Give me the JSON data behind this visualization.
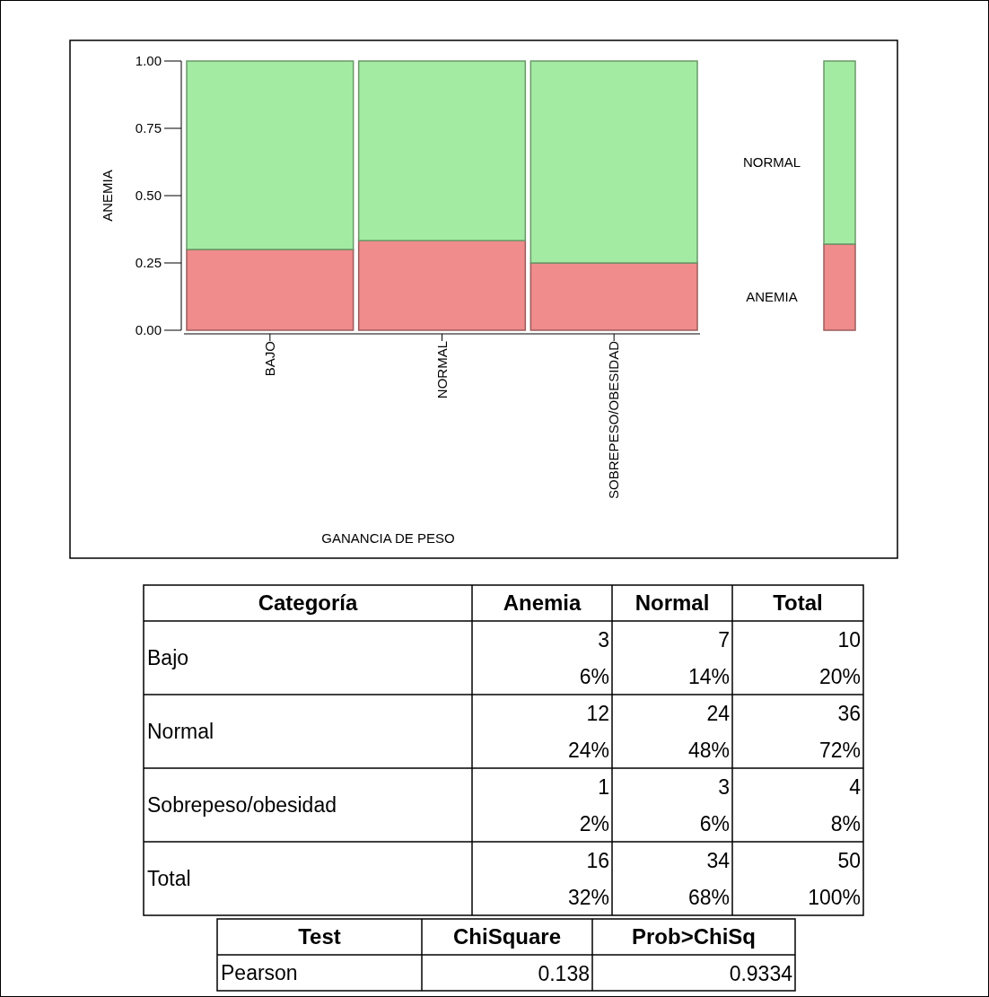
{
  "chart_data": [
    {
      "type": "bar",
      "stacked": true,
      "xlabel": "GANANCIA DE PESO",
      "ylabel": "ANEMIA",
      "categories": [
        "BAJO",
        "NORMAL",
        "SOBREPESO/OBESIDAD"
      ],
      "ylim": [
        0,
        1
      ],
      "yticks": [
        {
          "value": 0,
          "label": "0.00"
        },
        {
          "value": 0.25,
          "label": "0.25"
        },
        {
          "value": 0.5,
          "label": "0.50"
        },
        {
          "value": 0.75,
          "label": "0.75"
        },
        {
          "value": 1,
          "label": "1.00"
        }
      ],
      "legend": "right",
      "grid": false,
      "series": [
        {
          "name": "ANEMIA",
          "color": "#f08c8c",
          "values": [
            0.3,
            0.333,
            0.25
          ]
        },
        {
          "name": "NORMAL",
          "color": "#a3eba3",
          "values": [
            0.7,
            0.667,
            0.75
          ]
        }
      ]
    },
    {
      "type": "bar",
      "stacked": true,
      "categories": [
        null
      ],
      "ylim": [
        0,
        1
      ],
      "tick_labels": false,
      "series": [
        {
          "color": "#f08c8c",
          "values": [
            0.32
          ]
        },
        {
          "color": "#a3eba3",
          "values": [
            0.68
          ]
        }
      ]
    },
    {
      "type": "other",
      "ylabel": "Categoría",
      "categories": [
        "Anemia",
        "Normal",
        "Total"
      ],
      "y_categories": [
        "Bajo",
        "Normal",
        "Sobrepeso/obesidad",
        "Total"
      ],
      "cell_labels": [
        [
          "3\n6%",
          "7\n14%",
          "10\n20%"
        ],
        [
          "12\n24%",
          "24\n48%",
          "36\n72%"
        ],
        [
          "1\n2%",
          "3\n6%",
          "4\n8%"
        ],
        [
          "16\n32%",
          "34\n68%",
          "50\n100%"
        ]
      ]
    },
    {
      "type": "other",
      "ylabel": "Test",
      "categories": [
        "ChiSquare",
        "Prob>ChiSq"
      ],
      "y_categories": [
        "Pearson"
      ],
      "cell_labels": [
        [
          "0.138",
          "0.9334"
        ]
      ]
    }
  ]
}
